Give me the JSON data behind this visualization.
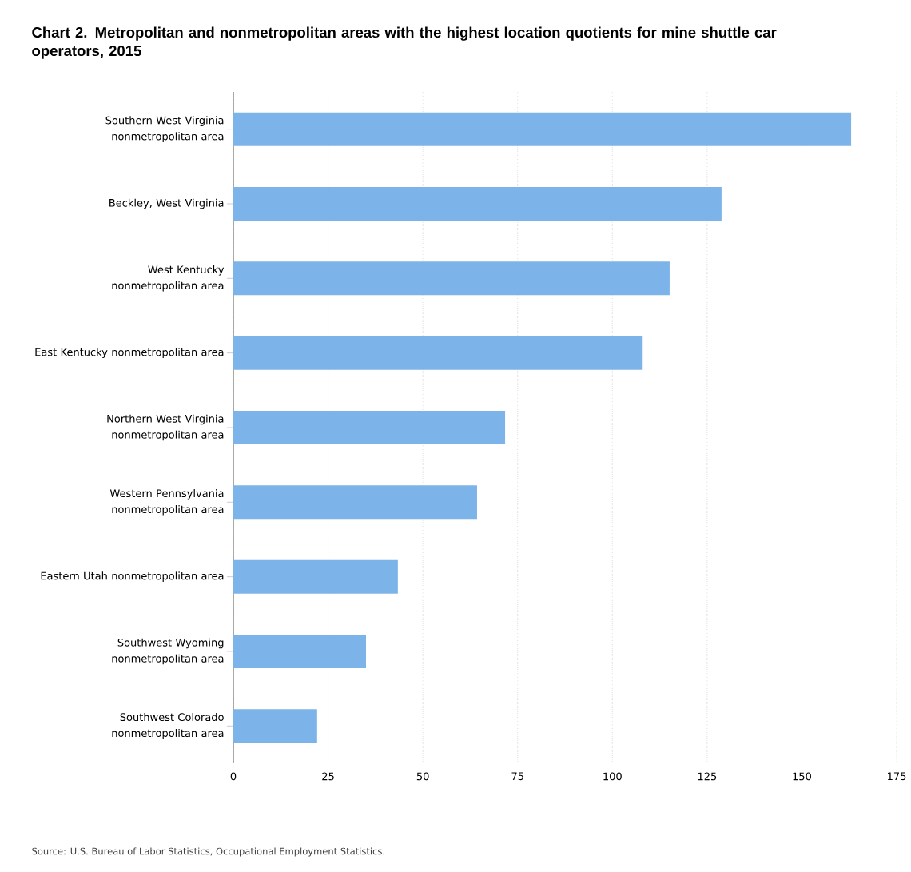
{
  "chart_data": {
    "type": "bar",
    "orientation": "horizontal",
    "title": "Chart 2. Metropolitan and nonmetropolitan areas with the highest location quotients for mine shuttle car operators, 2015",
    "categories": [
      "Southern West Virginia nonmetropolitan area",
      "Beckley, West Virginia",
      "West Kentucky nonmetropolitan area",
      "East Kentucky nonmetropolitan area",
      "Northern West Virginia nonmetropolitan area",
      "Western Pennsylvania nonmetropolitan area",
      "Eastern Utah nonmetropolitan area",
      "Southwest Wyoming nonmetropolitan area",
      "Southwest Colorado nonmetropolitan area"
    ],
    "values": [
      163,
      128.8,
      115.1,
      108,
      71.7,
      64.3,
      43.4,
      35,
      22.1
    ],
    "color": "#7cb4ea",
    "xlim": [
      0,
      175
    ],
    "xticks": [
      0,
      25,
      50,
      75,
      100,
      125,
      150,
      175
    ],
    "grid": "x",
    "annotations": [
      "Source: U.S. Bureau of Labor Statistics, Occupational Employment Statistics."
    ]
  }
}
